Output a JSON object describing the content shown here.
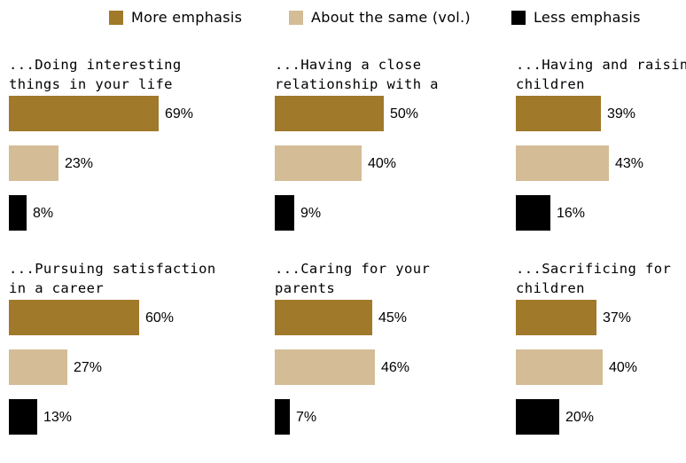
{
  "colors": {
    "more": "#a0792a",
    "same": "#d4bc96",
    "less": "#000000"
  },
  "legend": [
    {
      "key": "more",
      "label": "More emphasis"
    },
    {
      "key": "same",
      "label": "About the same (vol.)"
    },
    {
      "key": "less",
      "label": "Less emphasis"
    }
  ],
  "chart_data": {
    "type": "bar",
    "orientation": "horizontal",
    "series_names": [
      "More emphasis",
      "About the same (vol.)",
      "Less emphasis"
    ],
    "unit": "%",
    "panels": [
      {
        "title": "...Doing interesting things in your life",
        "values": [
          69,
          23,
          8
        ]
      },
      {
        "title": "...Having a close relationship with a spouse",
        "values": [
          50,
          40,
          9
        ]
      },
      {
        "title": "...Having and raising children",
        "values": [
          39,
          43,
          16
        ]
      },
      {
        "title": "...Pursuing satisfaction in a career",
        "values": [
          60,
          27,
          13
        ]
      },
      {
        "title": "...Caring for your parents",
        "values": [
          45,
          46,
          7
        ]
      },
      {
        "title": "...Sacrificing for children",
        "values": [
          37,
          40,
          20
        ]
      }
    ]
  }
}
